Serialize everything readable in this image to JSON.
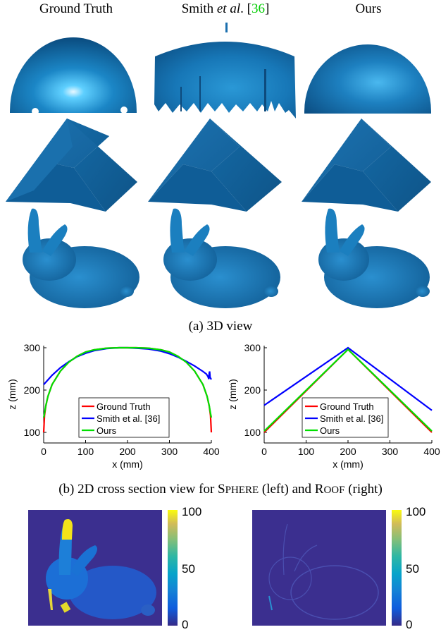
{
  "columns": {
    "gt": "Ground Truth",
    "smith_name": "Smith",
    "smith_etal": "et al",
    "smith_dot": ".",
    "smith_lb": "[",
    "smith_ref": "36",
    "smith_rb": "]",
    "ours": "Ours"
  },
  "captions": {
    "a": "(a) 3D view",
    "b": "(b) 2D cross section view for SPHERE (left) and ROOF (right)"
  },
  "colors": {
    "surface": "#1f6fae",
    "gt_line": "#ff0000",
    "smith_line": "#0000ff",
    "ours_line": "#00e000",
    "ref_link": "#00cc00"
  },
  "chart_data": [
    {
      "type": "line",
      "xlabel": "x (mm)",
      "ylabel": "z (mm)",
      "xlim": [
        0,
        400
      ],
      "ylim": [
        75,
        305
      ],
      "xticks": [
        "0",
        "100",
        "200",
        "300",
        "400"
      ],
      "yticks": [
        "100",
        "200",
        "300"
      ],
      "legend_position": "bottom-center",
      "series": [
        {
          "name": "Ground Truth",
          "x": [
            0,
            2,
            5,
            10,
            20,
            40,
            60,
            80,
            100,
            120,
            150,
            180,
            200,
            220,
            250,
            280,
            300,
            320,
            340,
            360,
            380,
            390,
            395,
            398,
            400
          ],
          "y": [
            100,
            140,
            162,
            185,
            213,
            245,
            266,
            280,
            290,
            295,
            299,
            300,
            300,
            300,
            299,
            295,
            290,
            280,
            266,
            245,
            213,
            185,
            162,
            140,
            100
          ]
        },
        {
          "name": "Smith et al. [36]",
          "x": [
            0,
            10,
            20,
            40,
            60,
            80,
            100,
            120,
            150,
            180,
            200,
            220,
            250,
            280,
            300,
            320,
            340,
            360,
            380,
            388,
            392,
            394,
            395,
            396,
            397,
            400
          ],
          "y": [
            213,
            224,
            235,
            253,
            267,
            279,
            287,
            293,
            298,
            300,
            300,
            299,
            297,
            292,
            286,
            278,
            268,
            257,
            244,
            238,
            232,
            226,
            240,
            244,
            230,
            225
          ]
        },
        {
          "name": "Ours",
          "x": [
            0,
            2,
            5,
            10,
            20,
            40,
            60,
            80,
            100,
            120,
            150,
            180,
            200,
            220,
            250,
            280,
            300,
            320,
            340,
            360,
            380,
            390,
            395,
            398,
            400
          ],
          "y": [
            135,
            145,
            163,
            185,
            213,
            245,
            266,
            280,
            290,
            295,
            299,
            300,
            300,
            300,
            299,
            295,
            290,
            280,
            266,
            245,
            213,
            185,
            163,
            145,
            135
          ]
        }
      ]
    },
    {
      "type": "line",
      "xlabel": "x (mm)",
      "ylabel": "z (mm)",
      "xlim": [
        0,
        400
      ],
      "ylim": [
        75,
        305
      ],
      "xticks": [
        "0",
        "100",
        "200",
        "300",
        "400"
      ],
      "yticks": [
        "100",
        "200",
        "300"
      ],
      "legend_position": "bottom-left",
      "series": [
        {
          "name": "Ground Truth",
          "x": [
            0,
            200,
            400
          ],
          "y": [
            100,
            296,
            100
          ]
        },
        {
          "name": "Smith et al. [36]",
          "x": [
            0,
            200,
            400
          ],
          "y": [
            164,
            300,
            152
          ]
        },
        {
          "name": "Ours",
          "x": [
            0,
            200,
            400
          ],
          "y": [
            103,
            296,
            103
          ]
        }
      ]
    }
  ],
  "heatmaps": [
    {
      "cbar_ticks": [
        "100",
        "50",
        "0"
      ],
      "vmin": 0,
      "vmax": 100
    },
    {
      "cbar_ticks": [
        "100",
        "50",
        "0"
      ],
      "vmin": 0,
      "vmax": 100
    }
  ]
}
